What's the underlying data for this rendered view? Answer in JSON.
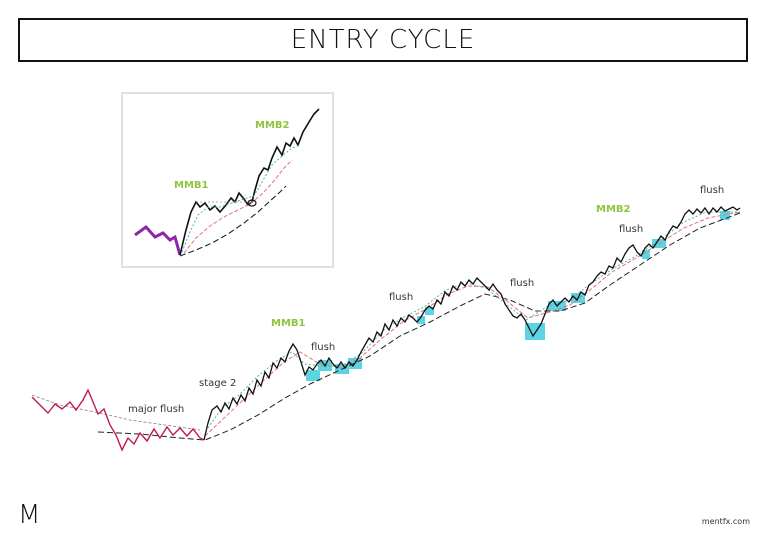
{
  "title": "ENTRY CYCLE",
  "inset": {
    "labels": {
      "mmb1": "MMB1",
      "mmb2": "MMB2"
    }
  },
  "main": {
    "labels": {
      "major_flush": "major flush",
      "stage2": "stage 2",
      "mmb1": "MMB1",
      "mmb2": "MMB2",
      "flush1": "flush",
      "flush2": "flush",
      "flush3": "flush",
      "flush4": "flush",
      "flush5": "flush"
    }
  },
  "footer": {
    "logo": "M",
    "site": "mentfx.com"
  },
  "colors": {
    "price": "#111111",
    "pre_stage": "#c2185b",
    "inset_pre": "#8e24aa",
    "highlight": "#4dd0e1",
    "label_green": "#8cc63f",
    "ma_fast": "#4db6ac",
    "ma_mid": "#e57373",
    "ma_slow": "#222222"
  }
}
